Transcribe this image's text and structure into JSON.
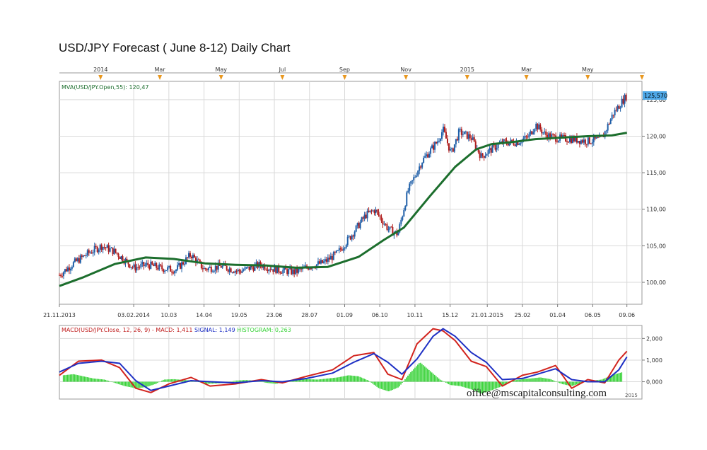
{
  "page": {
    "title": "USD/JPY Forecast ( June 8-12) Daily Chart",
    "watermark": "office@mscapitalconsulting.com",
    "footer_year": "2015"
  },
  "colors": {
    "candle_up": "#1f5fa8",
    "candle_down": "#b01c1c",
    "mva": "#1c6e2d",
    "macd": "#d2231d",
    "signal": "#1d2fc4",
    "histogram": "#3cd33c",
    "price_tag": "#4ea7e6",
    "grid": "#d9d9d9"
  },
  "chart_data": [
    {
      "type": "line",
      "name": "price",
      "legend": "MVA(USD/JPY.Open,55): 120,47",
      "last_price_label": "125,570",
      "top_month_labels": [
        {
          "label": "2014",
          "x": "2014-01-01"
        },
        {
          "label": "Mar",
          "x": "2014-03-01"
        },
        {
          "label": "May",
          "x": "2014-05-01"
        },
        {
          "label": "Jul",
          "x": "2014-07-01"
        },
        {
          "label": "Sep",
          "x": "2014-09-01"
        },
        {
          "label": "Nov",
          "x": "2014-11-01"
        },
        {
          "label": "2015",
          "x": "2015-01-01"
        },
        {
          "label": "Mar",
          "x": "2015-03-01"
        },
        {
          "label": "May",
          "x": "2015-05-01"
        }
      ],
      "x_tick_labels": [
        {
          "label": "21.11.2013",
          "x": "2013-11-21"
        },
        {
          "label": "03.02.2014",
          "x": "2014-02-03"
        },
        {
          "label": "10.03",
          "x": "2014-03-10"
        },
        {
          "label": "14.04",
          "x": "2014-04-14"
        },
        {
          "label": "19.05",
          "x": "2014-05-19"
        },
        {
          "label": "23.06",
          "x": "2014-06-23"
        },
        {
          "label": "28.07",
          "x": "2014-07-28"
        },
        {
          "label": "01.09",
          "x": "2014-09-01"
        },
        {
          "label": "06.10",
          "x": "2014-10-06"
        },
        {
          "label": "10.11",
          "x": "2014-11-10"
        },
        {
          "label": "15.12",
          "x": "2014-12-15"
        },
        {
          "label": "21.01.2015",
          "x": "2015-01-21"
        },
        {
          "label": "25.02",
          "x": "2015-02-25"
        },
        {
          "label": "01.04",
          "x": "2015-04-01"
        },
        {
          "label": "06.05",
          "x": "2015-05-06"
        },
        {
          "label": "09.06",
          "x": "2015-06-09"
        }
      ],
      "y_tick_labels": [
        "100,00",
        "105,00",
        "110,00",
        "115,00",
        "120,00",
        "125,00"
      ],
      "y_ticks": [
        100,
        105,
        110,
        115,
        120,
        125
      ],
      "ylim": [
        97,
        127.5
      ],
      "xlim": [
        "2013-11-21",
        "2015-06-24"
      ],
      "series": [
        {
          "name": "USD/JPY price",
          "x": [
            "2013-11-21",
            "2013-12-05",
            "2013-12-20",
            "2014-01-02",
            "2014-01-15",
            "2014-02-03",
            "2014-02-17",
            "2014-03-03",
            "2014-03-17",
            "2014-04-01",
            "2014-04-14",
            "2014-05-01",
            "2014-05-19",
            "2014-06-09",
            "2014-06-23",
            "2014-07-14",
            "2014-07-28",
            "2014-08-11",
            "2014-08-25",
            "2014-09-08",
            "2014-09-22",
            "2014-10-01",
            "2014-10-15",
            "2014-10-24",
            "2014-11-03",
            "2014-11-17",
            "2014-12-02",
            "2014-12-08",
            "2014-12-16",
            "2014-12-24",
            "2015-01-05",
            "2015-01-15",
            "2015-01-26",
            "2015-02-05",
            "2015-02-20",
            "2015-03-03",
            "2015-03-10",
            "2015-03-20",
            "2015-04-01",
            "2015-04-15",
            "2015-05-01",
            "2015-05-15",
            "2015-05-26",
            "2015-06-05",
            "2015-06-09"
          ],
          "y": [
            101.0,
            102.6,
            104.0,
            105.0,
            104.2,
            102.0,
            102.4,
            101.9,
            101.7,
            103.8,
            101.8,
            102.2,
            101.5,
            102.4,
            101.8,
            101.4,
            102.2,
            102.7,
            104.0,
            106.5,
            109.2,
            109.9,
            107.2,
            106.6,
            112.5,
            116.6,
            119.2,
            120.9,
            117.6,
            120.6,
            119.8,
            117.2,
            118.3,
            119.1,
            119.2,
            119.9,
            121.6,
            120.2,
            119.7,
            119.6,
            119.3,
            119.6,
            123.0,
            124.9,
            125.57
          ]
        },
        {
          "name": "MVA(USD/JPY.Open,55)",
          "x": [
            "2013-11-21",
            "2013-12-15",
            "2014-01-15",
            "2014-02-15",
            "2014-03-15",
            "2014-04-15",
            "2014-05-15",
            "2014-06-15",
            "2014-07-15",
            "2014-08-15",
            "2014-09-15",
            "2014-10-10",
            "2014-10-30",
            "2014-11-25",
            "2014-12-20",
            "2015-01-10",
            "2015-01-25",
            "2015-02-15",
            "2015-03-10",
            "2015-04-05",
            "2015-05-01",
            "2015-05-25",
            "2015-06-09"
          ],
          "y": [
            99.5,
            100.7,
            102.5,
            103.4,
            103.2,
            102.6,
            102.4,
            102.3,
            102.0,
            102.1,
            103.5,
            105.8,
            107.5,
            111.8,
            115.8,
            118.2,
            118.9,
            119.2,
            119.6,
            119.8,
            120.0,
            120.1,
            120.47
          ]
        }
      ]
    },
    {
      "type": "line",
      "name": "macd",
      "legend_parts": [
        "MACD(USD/JPY.Close, 12, 26, 9) -",
        "MACD: 1,411",
        "SIGNAL: 1,149",
        "HISTOGRAM: 0,263"
      ],
      "y_tick_labels": [
        "0,000",
        "1,000",
        "2,000"
      ],
      "y_ticks": [
        0,
        1,
        2
      ],
      "ylim": [
        -0.8,
        2.6
      ],
      "xlim": [
        "2013-11-21",
        "2015-06-24"
      ],
      "series": [
        {
          "name": "MACD",
          "x": [
            "2013-11-21",
            "2013-12-10",
            "2014-01-02",
            "2014-01-20",
            "2014-02-05",
            "2014-02-20",
            "2014-03-10",
            "2014-04-01",
            "2014-04-20",
            "2014-05-15",
            "2014-06-10",
            "2014-07-01",
            "2014-07-25",
            "2014-08-20",
            "2014-09-10",
            "2014-09-30",
            "2014-10-14",
            "2014-10-28",
            "2014-11-12",
            "2014-11-28",
            "2014-12-08",
            "2014-12-20",
            "2015-01-05",
            "2015-01-20",
            "2015-02-05",
            "2015-02-25",
            "2015-03-12",
            "2015-03-30",
            "2015-04-15",
            "2015-05-01",
            "2015-05-18",
            "2015-06-01",
            "2015-06-09"
          ],
          "y": [
            0.3,
            0.95,
            1.0,
            0.65,
            -0.3,
            -0.5,
            -0.1,
            0.2,
            -0.2,
            -0.1,
            0.1,
            -0.05,
            0.25,
            0.55,
            1.2,
            1.35,
            0.35,
            0.1,
            1.75,
            2.45,
            2.35,
            1.9,
            0.95,
            0.7,
            -0.2,
            0.3,
            0.45,
            0.75,
            -0.3,
            0.1,
            -0.05,
            1.0,
            1.411
          ]
        },
        {
          "name": "SIGNAL",
          "x": [
            "2013-11-21",
            "2013-12-10",
            "2014-01-02",
            "2014-01-20",
            "2014-02-05",
            "2014-02-20",
            "2014-03-10",
            "2014-04-01",
            "2014-04-20",
            "2014-05-15",
            "2014-06-10",
            "2014-07-01",
            "2014-07-25",
            "2014-08-20",
            "2014-09-10",
            "2014-09-30",
            "2014-10-14",
            "2014-10-28",
            "2014-11-12",
            "2014-11-28",
            "2014-12-08",
            "2014-12-20",
            "2015-01-05",
            "2015-01-20",
            "2015-02-05",
            "2015-02-25",
            "2015-03-12",
            "2015-03-30",
            "2015-04-15",
            "2015-05-01",
            "2015-05-18",
            "2015-06-01",
            "2015-06-09"
          ],
          "y": [
            0.45,
            0.85,
            0.95,
            0.85,
            0.05,
            -0.4,
            -0.2,
            0.05,
            0.0,
            -0.05,
            0.05,
            0.0,
            0.15,
            0.4,
            0.9,
            1.3,
            0.9,
            0.35,
            1.05,
            2.1,
            2.45,
            2.1,
            1.35,
            0.9,
            0.1,
            0.15,
            0.35,
            0.6,
            0.1,
            0.0,
            0.0,
            0.55,
            1.149
          ]
        }
      ],
      "histogram": {
        "name": "HISTOGRAM",
        "x": [
          "2013-11-25",
          "2013-12-05",
          "2013-12-15",
          "2013-12-25",
          "2014-01-05",
          "2014-01-15",
          "2014-01-25",
          "2014-02-05",
          "2014-02-15",
          "2014-02-25",
          "2014-03-05",
          "2014-03-15",
          "2014-03-25",
          "2014-04-05",
          "2014-04-15",
          "2014-04-25",
          "2014-05-05",
          "2014-05-15",
          "2014-05-25",
          "2014-06-05",
          "2014-06-15",
          "2014-06-25",
          "2014-07-05",
          "2014-07-15",
          "2014-07-25",
          "2014-08-05",
          "2014-08-15",
          "2014-08-25",
          "2014-09-05",
          "2014-09-15",
          "2014-09-25",
          "2014-10-05",
          "2014-10-15",
          "2014-10-25",
          "2014-11-05",
          "2014-11-15",
          "2014-11-25",
          "2014-12-05",
          "2014-12-15",
          "2014-12-25",
          "2015-01-05",
          "2015-01-15",
          "2015-01-25",
          "2015-02-05",
          "2015-02-15",
          "2015-02-25",
          "2015-03-05",
          "2015-03-15",
          "2015-03-25",
          "2015-04-05",
          "2015-04-15",
          "2015-04-25",
          "2015-05-05",
          "2015-05-15",
          "2015-05-25",
          "2015-06-05"
        ],
        "y": [
          0.3,
          0.35,
          0.25,
          0.15,
          0.1,
          -0.05,
          -0.2,
          -0.3,
          -0.25,
          -0.1,
          0.1,
          0.12,
          0.08,
          0.05,
          -0.1,
          -0.08,
          -0.05,
          0.05,
          0.08,
          0.05,
          -0.05,
          -0.1,
          0.05,
          0.1,
          0.12,
          0.1,
          0.15,
          0.2,
          0.3,
          0.25,
          0.05,
          -0.3,
          -0.45,
          -0.25,
          0.4,
          0.9,
          0.5,
          0.1,
          -0.15,
          -0.2,
          -0.35,
          -0.55,
          -0.4,
          -0.2,
          0.05,
          0.12,
          0.15,
          0.2,
          0.12,
          -0.1,
          -0.2,
          -0.05,
          0.05,
          0.1,
          0.3,
          0.45
        ]
      }
    }
  ]
}
